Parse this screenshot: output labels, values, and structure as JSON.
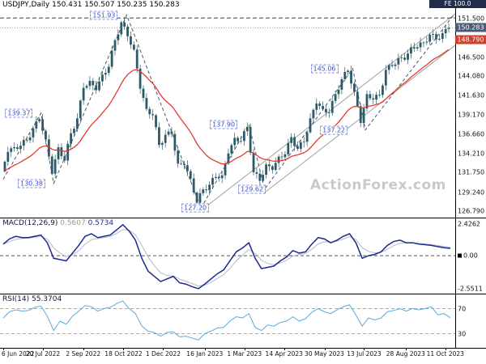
{
  "header": {
    "symbol": "USDJPY,Daily",
    "ohlc": "150.431 150.507 150.235 150.283",
    "fe_label": "FE 100.0"
  },
  "watermark": "ActionForex.com",
  "colors": {
    "candle": "#2e5a68",
    "ma": "#e23b2e",
    "macd": "#1b2a8f",
    "macd_signal": "#b8b8c8",
    "rsi": "#58aadc",
    "trend": "#a0a0a0",
    "zigzag": "#44566a",
    "price_box_bg": "#4a5a72",
    "ma_box_bg": "#d23f2f",
    "fe_box_bg": "#1f2d4a",
    "annotation": "#3a4fd0",
    "annotation_border": "#8090e0",
    "watermark_color": "#c9c9c9"
  },
  "main_chart": {
    "axis_labels": [
      "151.500",
      "146.500",
      "144.080",
      "141.630",
      "139.170",
      "136.660",
      "134.210",
      "131.750",
      "129.240",
      "126.790"
    ],
    "price_marker": "150.283",
    "ma_marker": "148.790",
    "levels": [
      {
        "value": 151.55,
        "style": "dashed"
      },
      {
        "value": 150.283,
        "style": "dotted"
      }
    ],
    "annotations": [
      {
        "text": "151.93",
        "idx": 16,
        "price": 151.93
      },
      {
        "text": "139.37",
        "idx": 2.5,
        "price": 139.37
      },
      {
        "text": "130.38",
        "idx": 4.5,
        "price": 130.38
      },
      {
        "text": "127.20",
        "idx": 30.5,
        "price": 127.2
      },
      {
        "text": "137.90",
        "idx": 35,
        "price": 137.9
      },
      {
        "text": "129.62",
        "idx": 39.5,
        "price": 129.62
      },
      {
        "text": "145.06",
        "idx": 51,
        "price": 145.06
      },
      {
        "text": "137.22",
        "idx": 52.5,
        "price": 137.22
      }
    ],
    "trendlines": [
      [
        [
          31.4,
          126.9
        ],
        [
          72,
          152.2
        ]
      ],
      [
        [
          41.5,
          129.2
        ],
        [
          72,
          148.2
        ]
      ]
    ],
    "zigzag": [
      [
        0,
        130.9
      ],
      [
        6,
        139.37
      ],
      [
        8,
        130.38
      ],
      [
        19.6,
        151.93
      ],
      [
        31.4,
        127.2
      ],
      [
        39,
        137.9
      ],
      [
        41.5,
        129.62
      ],
      [
        55.5,
        145.06
      ],
      [
        57.5,
        137.22
      ],
      [
        71.5,
        151.9
      ]
    ]
  },
  "macd": {
    "name": "MACD(12,26,9)",
    "signal_value": "0.5607",
    "value": "0.5734",
    "ylim": [
      -2.75,
      2.7
    ],
    "axis_labels": [
      "2.4262",
      "-2.5511"
    ],
    "zero_label": "0.00"
  },
  "rsi": {
    "name": "RSI(14)",
    "value": "55.3704",
    "ylim": [
      10,
      90
    ],
    "levels": [
      70,
      30
    ],
    "axis_labels": [
      "70",
      "30"
    ]
  },
  "x_axis": {
    "labels": [
      {
        "text": "6 Jun 2022",
        "idx": 0
      },
      {
        "text": "20 Jul 2022",
        "idx": 6.3
      },
      {
        "text": "2 Sep 2022",
        "idx": 12.7
      },
      {
        "text": "18 Oct 2022",
        "idx": 19.1
      },
      {
        "text": "1 Dec 2022",
        "idx": 25.4
      },
      {
        "text": "16 Jan 2023",
        "idx": 32
      },
      {
        "text": "1 Mar 2023",
        "idx": 38.3
      },
      {
        "text": "14 Apr 2023",
        "idx": 44.6
      },
      {
        "text": "30 May 2023",
        "idx": 51
      },
      {
        "text": "13 Jul 2023",
        "idx": 57.3
      },
      {
        "text": "28 Aug 2023",
        "idx": 63.9
      },
      {
        "text": "11 Oct 2023",
        "idx": 70.2
      }
    ]
  },
  "chart_data": {
    "type": "candlestick",
    "symbol": "USDJPY",
    "timeframe": "Daily",
    "current_ohlc": {
      "open": 150.431,
      "high": 150.507,
      "low": 150.235,
      "close": 150.283
    },
    "x_range": [
      "6 Jun 2022",
      "11 Oct 2023"
    ],
    "price_ylim": [
      126.2,
      152.4
    ],
    "closes": [
      131.9,
      134.4,
      135.0,
      135.2,
      135.9,
      137.4,
      138.6,
      136.0,
      131.6,
      135.0,
      133.3,
      136.8,
      138.7,
      142.6,
      143.5,
      142.3,
      144.3,
      145.3,
      148.7,
      151.0,
      149.2,
      147.5,
      142.5,
      139.9,
      139.1,
      135.3,
      136.6,
      136.7,
      132.9,
      132.7,
      131.0,
      127.9,
      129.6,
      130.2,
      131.2,
      131.4,
      134.2,
      136.2,
      135.8,
      137.6,
      131.8,
      130.7,
      132.8,
      132.1,
      133.8,
      134.1,
      136.3,
      134.8,
      135.7,
      138.7,
      140.6,
      139.9,
      139.4,
      141.8,
      143.7,
      144.8,
      142.1,
      138.1,
      141.8,
      141.1,
      141.7,
      144.9,
      145.4,
      146.4,
      146.2,
      147.8,
      147.8,
      148.4,
      149.4,
      148.8,
      149.6,
      150.28
    ],
    "pivot_points": [
      139.37,
      130.38,
      151.93,
      127.2,
      137.9,
      129.62,
      145.06,
      137.22
    ],
    "moving_average_last": 148.79,
    "fib_extension_level": 151.5,
    "indicators": {
      "macd": {
        "params": "12,26,9",
        "last": [
          0.5607,
          0.5734
        ],
        "range": [
          -2.5511,
          2.4262
        ],
        "values": [
          0.9,
          1.3,
          1.5,
          1.4,
          1.4,
          1.5,
          1.6,
          1.0,
          -0.2,
          -0.3,
          -0.4,
          0.2,
          0.8,
          1.5,
          1.7,
          1.4,
          1.5,
          1.6,
          2.0,
          2.4,
          1.9,
          1.2,
          -0.2,
          -1.2,
          -1.6,
          -2.0,
          -1.8,
          -1.6,
          -2.1,
          -2.2,
          -2.4,
          -2.55,
          -2.2,
          -1.8,
          -1.4,
          -1.1,
          -0.4,
          0.3,
          0.6,
          1.0,
          -0.2,
          -1.0,
          -0.9,
          -0.8,
          -0.4,
          -0.1,
          0.4,
          0.2,
          0.3,
          0.9,
          1.4,
          1.3,
          1.0,
          1.2,
          1.5,
          1.7,
          1.0,
          -0.2,
          0.0,
          0.1,
          0.3,
          0.8,
          1.1,
          1.2,
          1.0,
          1.0,
          0.9,
          0.85,
          0.8,
          0.7,
          0.62,
          0.57
        ]
      },
      "rsi": {
        "params": "14",
        "last": 55.3704,
        "levels": [
          70,
          30
        ],
        "values": [
          55,
          65,
          68,
          66,
          67,
          72,
          74,
          58,
          35,
          50,
          45,
          58,
          66,
          75,
          73,
          66,
          70,
          72,
          78,
          82,
          70,
          62,
          42,
          34,
          32,
          26,
          32,
          33,
          25,
          26,
          23,
          20,
          30,
          34,
          39,
          40,
          50,
          57,
          55,
          62,
          40,
          35,
          44,
          42,
          48,
          50,
          57,
          50,
          54,
          64,
          70,
          65,
          62,
          68,
          73,
          76,
          60,
          42,
          55,
          52,
          55,
          65,
          67,
          70,
          66,
          70,
          68,
          70,
          73,
          60,
          62,
          55.4
        ]
      }
    }
  }
}
